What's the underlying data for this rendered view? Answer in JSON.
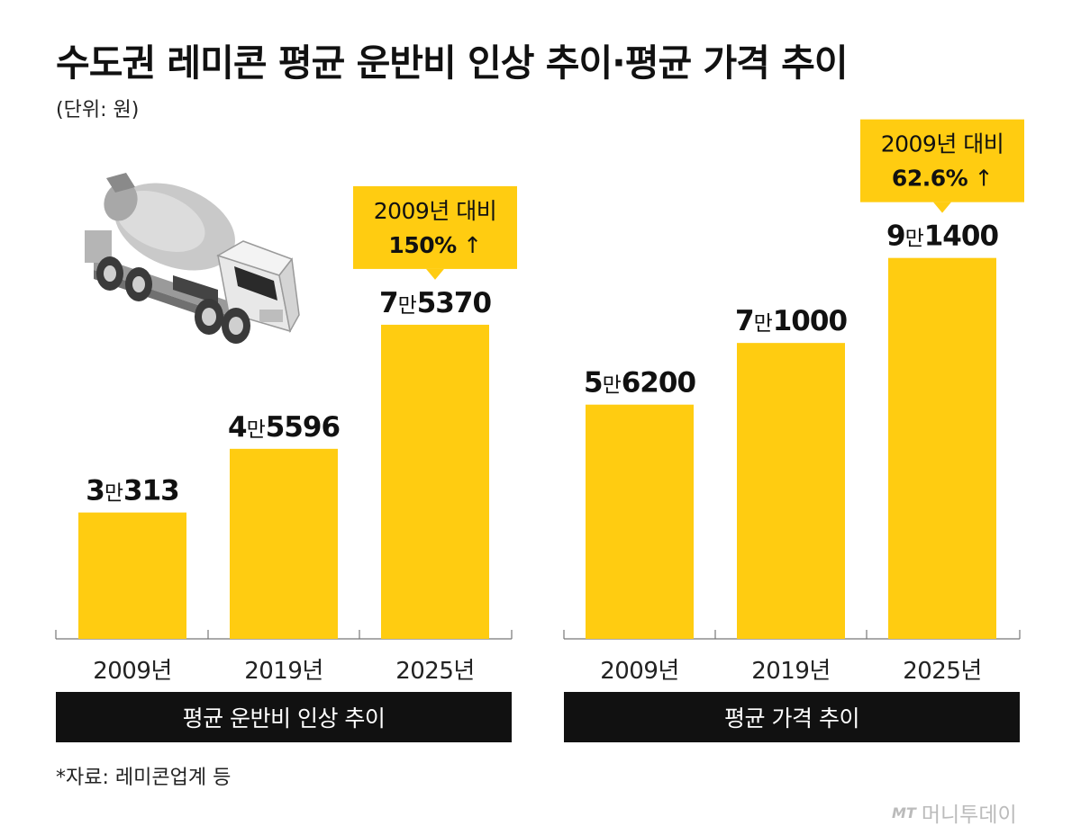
{
  "title": "수도권 레미콘 평균 운반비 인상 추이·평균 가격 추이",
  "unit": "(단위: 원)",
  "source": "*자료: 레미콘업계 등",
  "brand": {
    "mark": "MT",
    "name": "머니투데이"
  },
  "colors": {
    "bar": "#FFCC11",
    "banner": "#111111"
  },
  "chart_data": [
    {
      "type": "bar",
      "title": "평균 운반비 인상 추이",
      "categories": [
        "2009년",
        "2019년",
        "2025년"
      ],
      "values": [
        30313,
        45596,
        75370
      ],
      "value_labels": [
        {
          "man": "3",
          "rest": "313"
        },
        {
          "man": "4",
          "rest": "5596"
        },
        {
          "man": "7",
          "rest": "5370"
        }
      ],
      "annotation": {
        "line1": "2009년 대비",
        "pct": "150%",
        "arrow": "↑"
      },
      "ylim": [
        0,
        95000
      ]
    },
    {
      "type": "bar",
      "title": "평균 가격 추이",
      "categories": [
        "2009년",
        "2019년",
        "2025년"
      ],
      "values": [
        56200,
        71000,
        91400
      ],
      "value_labels": [
        {
          "man": "5",
          "rest": "6200"
        },
        {
          "man": "7",
          "rest": "1000"
        },
        {
          "man": "9",
          "rest": "1400"
        }
      ],
      "annotation": {
        "line1": "2009년 대비",
        "pct": "62.6%",
        "arrow": "↑"
      },
      "ylim": [
        0,
        95000
      ]
    }
  ],
  "man_unit": "만"
}
